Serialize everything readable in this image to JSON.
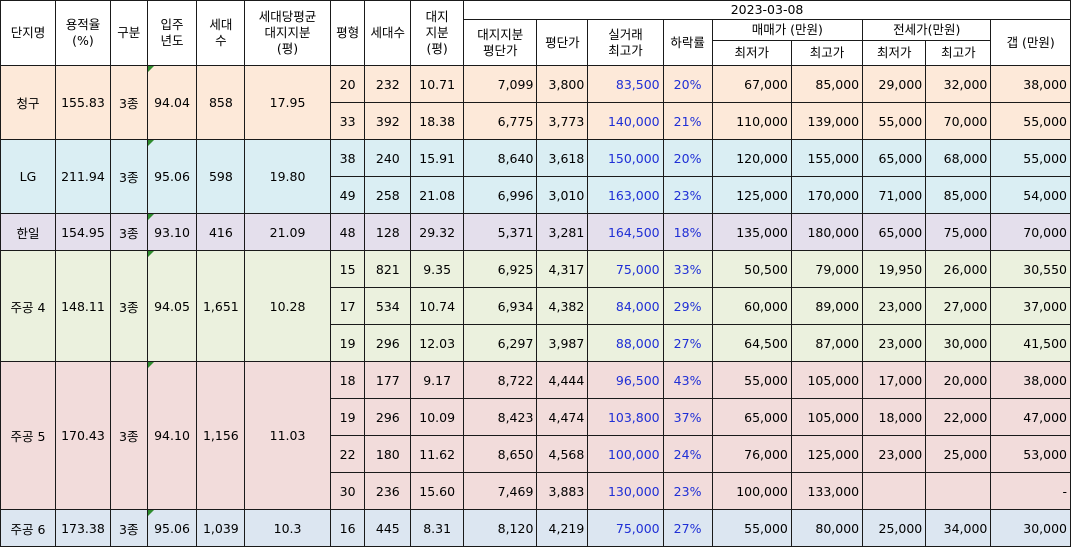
{
  "headers": {
    "complex": "단지명",
    "far": "용적율\n(%)",
    "type": "구분",
    "year": "입주\n년도",
    "households": "세대\n수",
    "land_per_hh": "세대당평균\n대지지분\n(평)",
    "pyeong": "평형",
    "unit_count": "세대수",
    "land": "대지\n지분\n(평)",
    "date": "2023-03-08",
    "land_unit_price": "대지지분\n평단가",
    "unit_price": "평단가",
    "max_real": "실거래\n최고가",
    "drop_rate": "하락률",
    "sale_group": "매매가 (만원)",
    "jeonse_group": "전세가(만원)",
    "min": "최저가",
    "max": "최고가",
    "gap": "갭 (만원)"
  },
  "groups": [
    {
      "name": "청구",
      "far": "155.83",
      "type": "3종",
      "year": "94.04",
      "households": "858",
      "land_per_hh": "17.95",
      "rows": [
        {
          "pyeong": "20",
          "count": "232",
          "land": "10.71",
          "land_price": "7,099",
          "unit_price": "3,800",
          "max_real": "83,500",
          "drop": "20%",
          "sale_min": "67,000",
          "sale_max": "85,000",
          "jeonse_min": "29,000",
          "jeonse_max": "32,000",
          "gap": "38,000"
        },
        {
          "pyeong": "33",
          "count": "392",
          "land": "18.38",
          "land_price": "6,775",
          "unit_price": "3,773",
          "max_real": "140,000",
          "drop": "21%",
          "sale_min": "110,000",
          "sale_max": "139,000",
          "jeonse_min": "55,000",
          "jeonse_max": "70,000",
          "gap": "55,000"
        }
      ]
    },
    {
      "name": "LG",
      "far": "211.94",
      "type": "3종",
      "year": "95.06",
      "households": "598",
      "land_per_hh": "19.80",
      "rows": [
        {
          "pyeong": "38",
          "count": "240",
          "land": "15.91",
          "land_price": "8,640",
          "unit_price": "3,618",
          "max_real": "150,000",
          "drop": "20%",
          "sale_min": "120,000",
          "sale_max": "155,000",
          "jeonse_min": "65,000",
          "jeonse_max": "68,000",
          "gap": "55,000"
        },
        {
          "pyeong": "49",
          "count": "258",
          "land": "21.08",
          "land_price": "6,996",
          "unit_price": "3,010",
          "max_real": "163,000",
          "drop": "23%",
          "sale_min": "125,000",
          "sale_max": "170,000",
          "jeonse_min": "71,000",
          "jeonse_max": "85,000",
          "gap": "54,000"
        }
      ]
    },
    {
      "name": "한일",
      "far": "154.95",
      "type": "3종",
      "year": "93.10",
      "households": "416",
      "land_per_hh": "21.09",
      "rows": [
        {
          "pyeong": "48",
          "count": "128",
          "land": "29.32",
          "land_price": "5,371",
          "unit_price": "3,281",
          "max_real": "164,500",
          "drop": "18%",
          "sale_min": "135,000",
          "sale_max": "180,000",
          "jeonse_min": "65,000",
          "jeonse_max": "75,000",
          "gap": "70,000"
        }
      ]
    },
    {
      "name": "주공 4",
      "far": "148.11",
      "type": "3종",
      "year": "94.05",
      "households": "1,651",
      "land_per_hh": "10.28",
      "rows": [
        {
          "pyeong": "15",
          "count": "821",
          "land": "9.35",
          "land_price": "6,925",
          "unit_price": "4,317",
          "max_real": "75,000",
          "drop": "33%",
          "sale_min": "50,500",
          "sale_max": "79,000",
          "jeonse_min": "19,950",
          "jeonse_max": "26,000",
          "gap": "30,550"
        },
        {
          "pyeong": "17",
          "count": "534",
          "land": "10.74",
          "land_price": "6,934",
          "unit_price": "4,382",
          "max_real": "84,000",
          "drop": "29%",
          "sale_min": "60,000",
          "sale_max": "89,000",
          "jeonse_min": "23,000",
          "jeonse_max": "27,000",
          "gap": "37,000"
        },
        {
          "pyeong": "19",
          "count": "296",
          "land": "12.03",
          "land_price": "6,297",
          "unit_price": "3,987",
          "max_real": "88,000",
          "drop": "27%",
          "sale_min": "64,500",
          "sale_max": "87,000",
          "jeonse_min": "23,000",
          "jeonse_max": "30,000",
          "gap": "41,500"
        }
      ]
    },
    {
      "name": "주공 5",
      "far": "170.43",
      "type": "3종",
      "year": "94.10",
      "households": "1,156",
      "land_per_hh": "11.03",
      "rows": [
        {
          "pyeong": "18",
          "count": "177",
          "land": "9.17",
          "land_price": "8,722",
          "unit_price": "4,444",
          "max_real": "96,500",
          "drop": "43%",
          "sale_min": "55,000",
          "sale_max": "105,000",
          "jeonse_min": "17,000",
          "jeonse_max": "20,000",
          "gap": "38,000"
        },
        {
          "pyeong": "19",
          "count": "296",
          "land": "10.09",
          "land_price": "8,423",
          "unit_price": "4,474",
          "max_real": "103,800",
          "drop": "37%",
          "sale_min": "65,000",
          "sale_max": "105,000",
          "jeonse_min": "18,000",
          "jeonse_max": "22,000",
          "gap": "47,000"
        },
        {
          "pyeong": "22",
          "count": "180",
          "land": "11.62",
          "land_price": "8,650",
          "unit_price": "4,568",
          "max_real": "100,000",
          "drop": "24%",
          "sale_min": "76,000",
          "sale_max": "125,000",
          "jeonse_min": "23,000",
          "jeonse_max": "25,000",
          "gap": "53,000"
        },
        {
          "pyeong": "30",
          "count": "236",
          "land": "15.60",
          "land_price": "7,469",
          "unit_price": "3,883",
          "max_real": "130,000",
          "drop": "23%",
          "sale_min": "100,000",
          "sale_max": "133,000",
          "jeonse_min": "",
          "jeonse_max": "",
          "gap": "-"
        }
      ]
    },
    {
      "name": "주공 6",
      "far": "173.38",
      "type": "3종",
      "year": "95.06",
      "households": "1,039",
      "land_per_hh": "10.3",
      "rows": [
        {
          "pyeong": "16",
          "count": "445",
          "land": "8.31",
          "land_price": "8,120",
          "unit_price": "4,219",
          "max_real": "75,000",
          "drop": "27%",
          "sale_min": "55,000",
          "sale_max": "80,000",
          "jeonse_min": "25,000",
          "jeonse_max": "34,000",
          "gap": "30,000"
        }
      ]
    }
  ],
  "colors": {
    "blue_text": "#1f2fd6",
    "cheonggu": "#fde9d9",
    "lg": "#daeef3",
    "hanil": "#e4dfec",
    "jugong4": "#ebf1de",
    "jugong5": "#f2dcdb",
    "jugong6": "#dce6f1",
    "comment_marker": "#2e8b2e"
  }
}
